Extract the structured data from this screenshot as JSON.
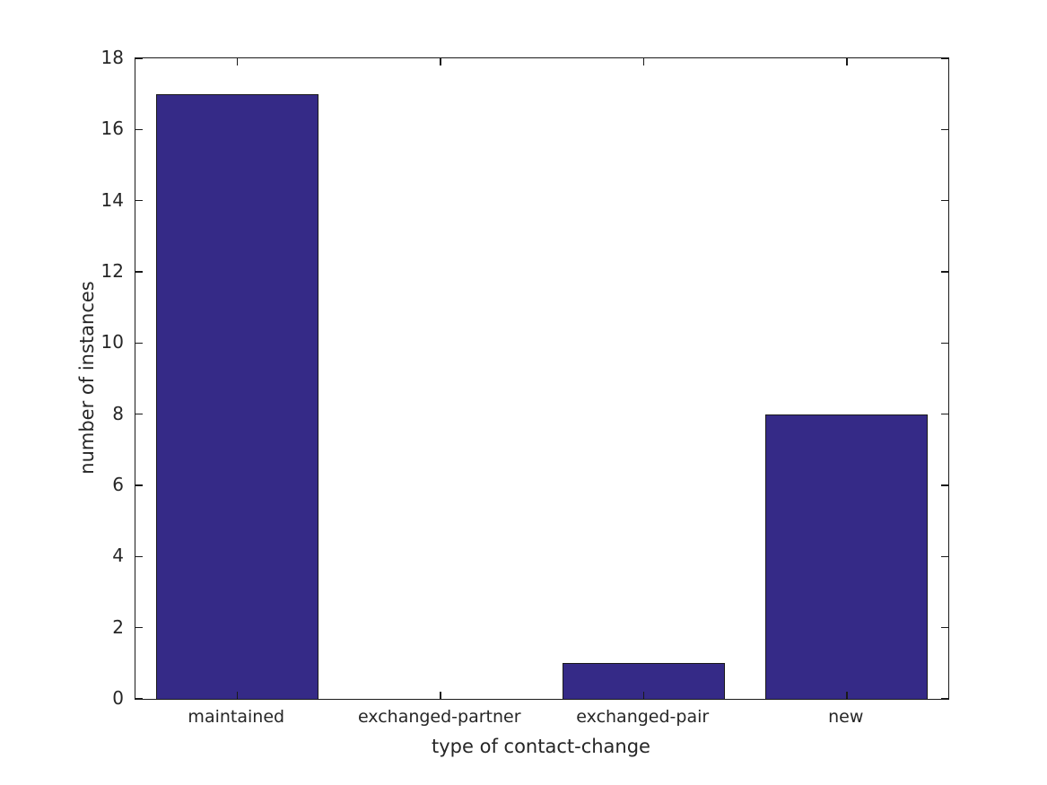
{
  "chart_data": {
    "type": "bar",
    "categories": [
      "maintained",
      "exchanged-partner",
      "exchanged-pair",
      "new"
    ],
    "values": [
      17,
      0,
      1,
      8
    ],
    "title": "",
    "xlabel": "type of contact-change",
    "ylabel": "number of instances",
    "ylim": [
      0,
      18
    ],
    "yticks": [
      0,
      2,
      4,
      6,
      8,
      10,
      12,
      14,
      16,
      18
    ],
    "bar_width_fraction": 0.8,
    "grid": false,
    "legend": null,
    "colors": {
      "bar_fill": "#352A87",
      "bar_edge": "#1a1a1a",
      "axis": "#1a1a1a",
      "text": "#262626",
      "background": "#ffffff"
    }
  }
}
